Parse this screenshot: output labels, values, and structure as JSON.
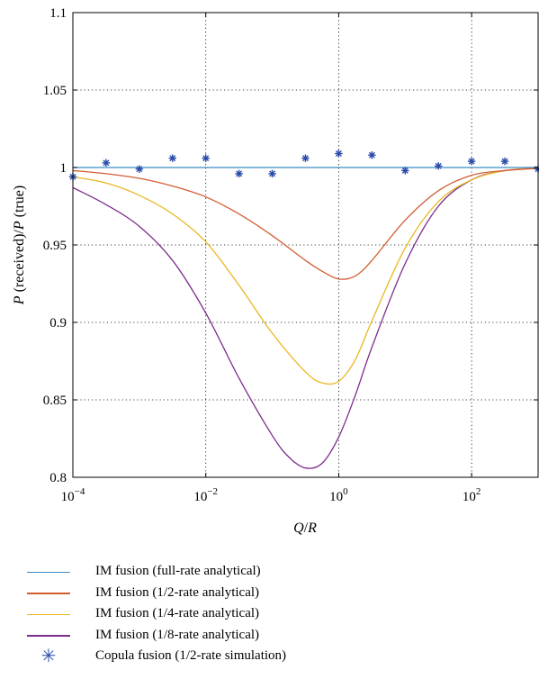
{
  "chart_data": {
    "type": "line",
    "xscale": "log",
    "xlim": [
      0.0001,
      1000
    ],
    "ylim": [
      0.8,
      1.1
    ],
    "grid": true,
    "legend_position": "below",
    "xlabel_parts": {
      "q": "Q",
      "slash": "/",
      "r": "R"
    },
    "ylabel_parts": {
      "p1": "P",
      "mid": " (received)/",
      "p2": "P",
      "end": " (true)"
    },
    "x_ticks": [
      {
        "value": 0.0001,
        "base": "10",
        "exp": "−4"
      },
      {
        "value": 0.01,
        "base": "10",
        "exp": "−2"
      },
      {
        "value": 1,
        "base": "10",
        "exp": "0"
      },
      {
        "value": 100,
        "base": "10",
        "exp": "2"
      }
    ],
    "y_ticks": [
      {
        "value": 0.8,
        "label": "0.8"
      },
      {
        "value": 0.85,
        "label": "0.85"
      },
      {
        "value": 0.9,
        "label": "0.9"
      },
      {
        "value": 0.95,
        "label": "0.95"
      },
      {
        "value": 1.0,
        "label": "1"
      },
      {
        "value": 1.05,
        "label": "1.05"
      },
      {
        "value": 1.1,
        "label": "1.1"
      }
    ],
    "series": [
      {
        "name": "IM fusion (full-rate analytical)",
        "kind": "line",
        "color": "#3B8CC4",
        "x": [
          0.0001,
          0.001,
          0.01,
          0.1,
          1,
          10,
          100,
          1000
        ],
        "y": [
          1.0,
          1.0,
          1.0,
          1.0,
          1.0,
          1.0,
          1.0,
          1.0
        ]
      },
      {
        "name": "IM fusion (1/2-rate analytical)",
        "kind": "line",
        "color": "#D35D33",
        "x": [
          0.0001,
          0.000316,
          0.001,
          0.00316,
          0.01,
          0.0316,
          0.1,
          0.316,
          0.562,
          1,
          1.78,
          3.16,
          10,
          31.6,
          100,
          316,
          1000
        ],
        "y": [
          0.998,
          0.996,
          0.993,
          0.988,
          0.981,
          0.97,
          0.956,
          0.94,
          0.933,
          0.928,
          0.93,
          0.94,
          0.966,
          0.985,
          0.995,
          0.998,
          0.9995
        ]
      },
      {
        "name": "IM fusion (1/4-rate analytical)",
        "kind": "line",
        "color": "#E9B722",
        "x": [
          0.0001,
          0.000316,
          0.001,
          0.00316,
          0.01,
          0.0316,
          0.1,
          0.316,
          0.562,
          1,
          1.78,
          3.16,
          10,
          31.6,
          100,
          316,
          1000
        ],
        "y": [
          0.994,
          0.99,
          0.982,
          0.97,
          0.952,
          0.924,
          0.893,
          0.868,
          0.861,
          0.862,
          0.876,
          0.901,
          0.948,
          0.978,
          0.992,
          0.998,
          0.9995
        ]
      },
      {
        "name": "IM fusion (1/8-rate analytical)",
        "kind": "line",
        "color": "#7D2D8C",
        "x": [
          0.0001,
          0.000316,
          0.001,
          0.00316,
          0.01,
          0.0316,
          0.1,
          0.178,
          0.316,
          0.562,
          1,
          1.78,
          3.16,
          10,
          31.6,
          100,
          316,
          1000
        ],
        "y": [
          0.987,
          0.976,
          0.962,
          0.94,
          0.906,
          0.864,
          0.827,
          0.813,
          0.806,
          0.809,
          0.826,
          0.853,
          0.884,
          0.938,
          0.975,
          0.992,
          0.998,
          0.9995
        ]
      },
      {
        "name": "Copula fusion (1/2-rate simulation)",
        "kind": "scatter",
        "color": "#2A4BAA",
        "x": [
          0.0001,
          0.000316,
          0.001,
          0.00316,
          0.01,
          0.0316,
          0.1,
          0.316,
          1,
          3.16,
          10,
          31.6,
          100,
          316,
          1000
        ],
        "y": [
          0.994,
          1.003,
          0.999,
          1.006,
          1.006,
          0.996,
          0.996,
          1.006,
          1.009,
          1.008,
          0.998,
          1.001,
          1.004,
          1.004,
          0.999
        ]
      }
    ]
  }
}
